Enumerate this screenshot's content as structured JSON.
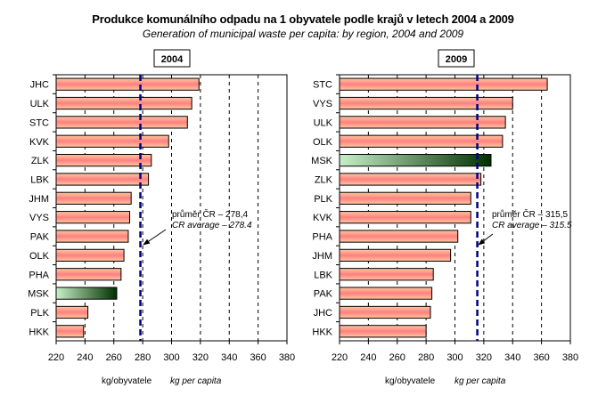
{
  "title": "Produkce komunálního odpadu na 1 obyvatele podle krajů v letech 2004 a 2009",
  "subtitle": "Generation of municipal waste per capita: by region, 2004 and 2009",
  "colors": {
    "bar_top": "#ffc8a0",
    "bar_mid": "#ff8080",
    "highlight_light": "#c8f0c8",
    "highlight_dark": "#003000",
    "average_line": "#000080"
  },
  "chart_data": [
    {
      "type": "bar",
      "orientation": "horizontal",
      "title": "2004",
      "categories": [
        "JHC",
        "ULK",
        "STC",
        "KVK",
        "ZLK",
        "LBK",
        "JHM",
        "VYS",
        "PAK",
        "OLK",
        "PHA",
        "MSK",
        "PLK",
        "HKK"
      ],
      "values": [
        319,
        314,
        311,
        298,
        286,
        284,
        272,
        271,
        270,
        267,
        265,
        262,
        242,
        239
      ],
      "highlight": "MSK",
      "xlim": [
        220,
        380
      ],
      "xticks": [
        220,
        240,
        260,
        280,
        300,
        320,
        340,
        360,
        380
      ],
      "xlabel": "kg/obyvatele",
      "xlabel_en": "kg per capita",
      "grid": "vertical dashed",
      "average": 278.4,
      "average_label_cz": "průměr ČR – 278,4",
      "average_label_en": "CR average – 278.4"
    },
    {
      "type": "bar",
      "orientation": "horizontal",
      "title": "2009",
      "categories": [
        "STC",
        "VYS",
        "ULK",
        "OLK",
        "MSK",
        "ZLK",
        "PLK",
        "KVK",
        "PHA",
        "JHM",
        "LBK",
        "PAK",
        "JHC",
        "HKK"
      ],
      "values": [
        364,
        340,
        335,
        333,
        325,
        318,
        311,
        311,
        302,
        297,
        285,
        284,
        283,
        280
      ],
      "highlight": "MSK",
      "xlim": [
        220,
        380
      ],
      "xticks": [
        220,
        240,
        260,
        280,
        300,
        320,
        340,
        360,
        380
      ],
      "xlabel": "kg/obyvatele",
      "xlabel_en": "kg per capita",
      "grid": "vertical dashed",
      "average": 315.5,
      "average_label_cz": "průměr ČR – 315,5",
      "average_label_en": "CR average – 315.5"
    }
  ]
}
